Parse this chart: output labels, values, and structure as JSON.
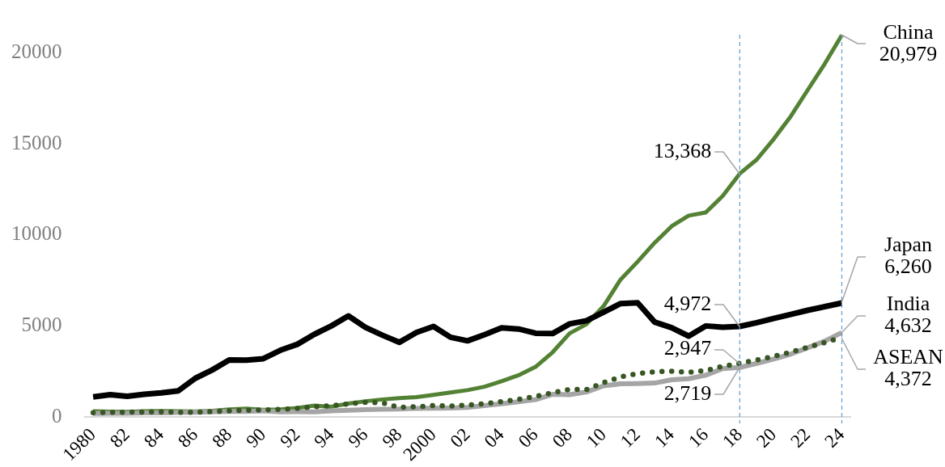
{
  "chart_data": {
    "type": "line",
    "x": [
      1980,
      1981,
      1982,
      1983,
      1984,
      1985,
      1986,
      1987,
      1988,
      1989,
      1990,
      1991,
      1992,
      1993,
      1994,
      1995,
      1996,
      1997,
      1998,
      1999,
      2000,
      2001,
      2002,
      2003,
      2004,
      2005,
      2006,
      2007,
      2008,
      2009,
      2010,
      2011,
      2012,
      2013,
      2014,
      2015,
      2016,
      2017,
      2018,
      2019,
      2020,
      2021,
      2022,
      2023,
      2024
    ],
    "xlim": [
      1979.5,
      2024.5
    ],
    "xticks": [
      1980,
      {
        "value": 1982,
        "label": "82"
      },
      {
        "value": 1984,
        "label": "84"
      },
      {
        "value": 1986,
        "label": "86"
      },
      {
        "value": 1988,
        "label": "88"
      },
      {
        "value": 1990,
        "label": "90"
      },
      {
        "value": 1992,
        "label": "92"
      },
      {
        "value": 1994,
        "label": "94"
      },
      {
        "value": 1996,
        "label": "96"
      },
      {
        "value": 1998,
        "label": "98"
      },
      2000,
      {
        "value": 2002,
        "label": "02"
      },
      {
        "value": 2004,
        "label": "04"
      },
      {
        "value": 2006,
        "label": "06"
      },
      {
        "value": 2008,
        "label": "08"
      },
      {
        "value": 2010,
        "label": "10"
      },
      {
        "value": 2012,
        "label": "12"
      },
      {
        "value": 2014,
        "label": "14"
      },
      {
        "value": 2016,
        "label": "16"
      },
      {
        "value": 2018,
        "label": "18"
      },
      {
        "value": 2020,
        "label": "20"
      },
      {
        "value": 2022,
        "label": "22"
      },
      {
        "value": 2024,
        "label": "24"
      }
    ],
    "ylim": [
      0,
      21000
    ],
    "yticks": [
      0,
      5000,
      10000,
      15000,
      20000
    ],
    "series": [
      {
        "name": "China",
        "color": "#548235",
        "values": [
          310,
          290,
          280,
          310,
          320,
          310,
          300,
          330,
          410,
          460,
          390,
          410,
          490,
          620,
          560,
          730,
          860,
          960,
          1030,
          1090,
          1210,
          1340,
          1470,
          1660,
          1960,
          2290,
          2750,
          3550,
          4590,
          5100,
          6090,
          7550,
          8530,
          9570,
          10480,
          11060,
          11230,
          12140,
          13368,
          14140,
          15270,
          16520,
          17970,
          19410,
          20979
        ],
        "value_labels": [
          null,
          null,
          null,
          null,
          null,
          null,
          null,
          null,
          null,
          null,
          null,
          null,
          null,
          null,
          null,
          null,
          null,
          null,
          null,
          null,
          null,
          null,
          null,
          null,
          null,
          null,
          null,
          null,
          null,
          null,
          null,
          null,
          null,
          null,
          null,
          null,
          null,
          null,
          "13,368",
          null,
          null,
          null,
          null,
          null,
          "20,979"
        ]
      },
      {
        "name": "Japan",
        "color": "#000000",
        "values": [
          1100,
          1220,
          1130,
          1240,
          1320,
          1430,
          2120,
          2580,
          3130,
          3120,
          3200,
          3660,
          3990,
          4540,
          5000,
          5550,
          4920,
          4490,
          4100,
          4640,
          4970,
          4380,
          4180,
          4520,
          4890,
          4830,
          4600,
          4580,
          5110,
          5290,
          5760,
          6230,
          6270,
          5210,
          4900,
          4440,
          5000,
          4930,
          4972,
          5180,
          5410,
          5630,
          5860,
          6060,
          6260
        ],
        "value_labels": [
          null,
          null,
          null,
          null,
          null,
          null,
          null,
          null,
          null,
          null,
          null,
          null,
          null,
          null,
          null,
          null,
          null,
          null,
          null,
          null,
          null,
          null,
          null,
          null,
          null,
          null,
          null,
          null,
          null,
          null,
          null,
          null,
          null,
          null,
          null,
          null,
          null,
          null,
          "4,972",
          null,
          null,
          null,
          null,
          null,
          "6,260"
        ]
      },
      {
        "name": "India",
        "color": "#a5a5a5",
        "values": [
          190,
          200,
          200,
          220,
          220,
          240,
          250,
          280,
          300,
          300,
          330,
          280,
          290,
          280,
          330,
          370,
          400,
          420,
          430,
          470,
          480,
          490,
          520,
          620,
          720,
          830,
          950,
          1240,
          1220,
          1370,
          1710,
          1820,
          1830,
          1860,
          2040,
          2100,
          2290,
          2650,
          2719,
          2940,
          3180,
          3450,
          3800,
          4170,
          4632
        ],
        "value_labels": [
          null,
          null,
          null,
          null,
          null,
          null,
          null,
          null,
          null,
          null,
          null,
          null,
          null,
          null,
          null,
          null,
          null,
          null,
          null,
          null,
          null,
          null,
          null,
          null,
          null,
          null,
          null,
          null,
          null,
          null,
          null,
          null,
          null,
          null,
          null,
          null,
          null,
          null,
          "2,719",
          null,
          null,
          null,
          null,
          null,
          "4,632"
        ]
      },
      {
        "name": "ASEAN",
        "color": "#375623",
        "line_style": "dotted",
        "values": [
          230,
          250,
          260,
          270,
          280,
          260,
          250,
          290,
          330,
          370,
          380,
          410,
          470,
          560,
          610,
          720,
          800,
          780,
          520,
          560,
          620,
          600,
          650,
          730,
          840,
          960,
          1120,
          1330,
          1510,
          1500,
          1890,
          2200,
          2380,
          2480,
          2510,
          2450,
          2550,
          2780,
          2947,
          3130,
          3330,
          3560,
          3820,
          4090,
          4372
        ],
        "value_labels": [
          null,
          null,
          null,
          null,
          null,
          null,
          null,
          null,
          null,
          null,
          null,
          null,
          null,
          null,
          null,
          null,
          null,
          null,
          null,
          null,
          null,
          null,
          null,
          null,
          null,
          null,
          null,
          null,
          null,
          null,
          null,
          null,
          null,
          null,
          null,
          null,
          null,
          null,
          "2,947",
          null,
          null,
          null,
          null,
          null,
          "4,372"
        ]
      }
    ],
    "ref_lines": [
      {
        "axis": "x",
        "value": 2018,
        "color": "#5b9bd5",
        "line_style": "dashed"
      },
      {
        "axis": "x",
        "value": 2024,
        "color": "#5b9bd5",
        "line_style": "dashed"
      }
    ]
  }
}
